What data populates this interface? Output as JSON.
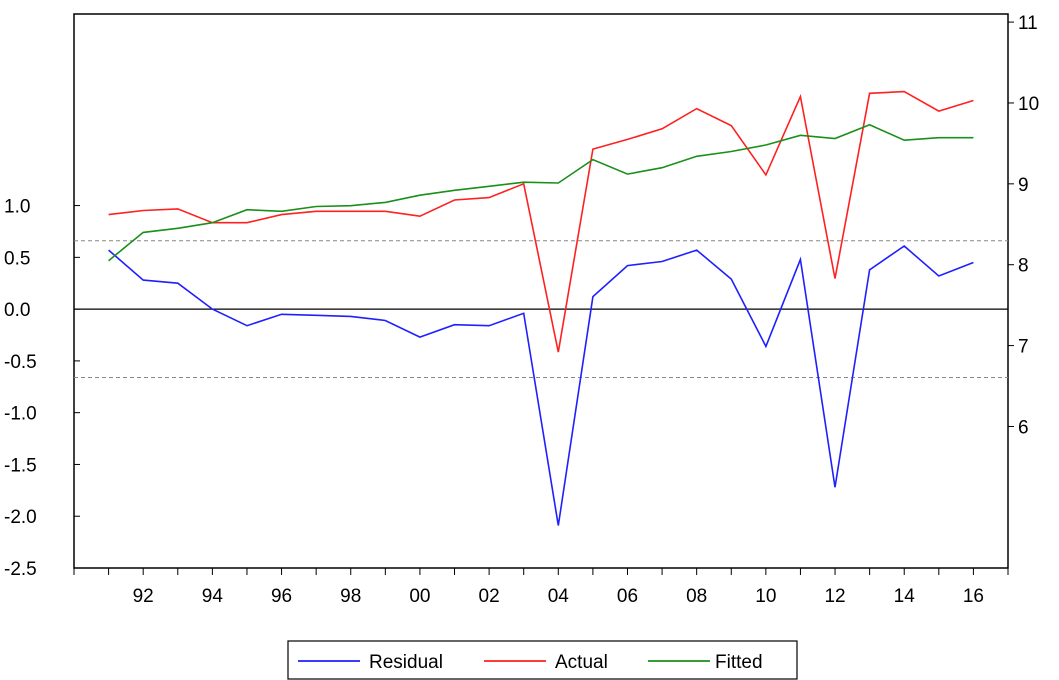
{
  "chart_data": {
    "type": "line",
    "x_tick_labels": [
      "92",
      "94",
      "96",
      "98",
      "00",
      "02",
      "04",
      "06",
      "08",
      "10",
      "12",
      "14",
      "16"
    ],
    "x_tick_years": [
      1992,
      1994,
      1996,
      1998,
      2000,
      2002,
      2004,
      2006,
      2008,
      2010,
      2012,
      2014,
      2016
    ],
    "xlim": [
      1990,
      2017
    ],
    "left_axis": {
      "ylim": [
        -2.5,
        2.85
      ],
      "ticks": [
        1.0,
        0.5,
        0.0,
        -0.5,
        -1.0,
        -1.5,
        -2.0,
        -2.5
      ],
      "tick_labels": [
        "1.0",
        "0.5",
        "0.0",
        "-0.5",
        "-1.0",
        "-1.5",
        "-2.0",
        "-2.5"
      ],
      "reference_line": 0.0,
      "dashed_lines": [
        0.66,
        -0.66
      ]
    },
    "right_axis": {
      "ylim": [
        4.25,
        11.1
      ],
      "ticks": [
        11,
        10,
        9,
        8,
        7,
        6
      ],
      "tick_labels": [
        "11",
        "10",
        "9",
        "8",
        "7",
        "6"
      ]
    },
    "x": [
      1991,
      1992,
      1993,
      1994,
      1995,
      1996,
      1997,
      1998,
      1999,
      2000,
      2001,
      2002,
      2003,
      2004,
      2005,
      2006,
      2007,
      2008,
      2009,
      2010,
      2011,
      2012,
      2013,
      2014,
      2015,
      2016
    ],
    "series": [
      {
        "name": "Residual",
        "axis": "left",
        "color": "#1f1fff",
        "values": [
          0.57,
          0.28,
          0.25,
          0.0,
          -0.16,
          -0.05,
          -0.06,
          -0.07,
          -0.11,
          -0.27,
          -0.15,
          -0.16,
          -0.04,
          -2.09,
          0.12,
          0.42,
          0.46,
          0.57,
          0.29,
          -0.36,
          0.48,
          -1.72,
          0.38,
          0.61,
          0.32,
          0.45
        ]
      },
      {
        "name": "Actual",
        "axis": "right",
        "color": "#ff2020",
        "values": [
          8.62,
          8.67,
          8.69,
          8.52,
          8.52,
          8.62,
          8.66,
          8.66,
          8.66,
          8.6,
          8.8,
          8.83,
          9.0,
          6.92,
          9.43,
          9.55,
          9.68,
          9.93,
          9.72,
          9.11,
          10.08,
          7.83,
          10.12,
          10.14,
          9.9,
          10.03
        ]
      },
      {
        "name": "Fitted",
        "axis": "right",
        "color": "#1a8f1a",
        "values": [
          8.05,
          8.4,
          8.45,
          8.52,
          8.68,
          8.66,
          8.72,
          8.73,
          8.77,
          8.86,
          8.92,
          8.97,
          9.02,
          9.01,
          9.3,
          9.12,
          9.2,
          9.34,
          9.4,
          9.48,
          9.6,
          9.56,
          9.73,
          9.54,
          9.57,
          9.57
        ]
      }
    ],
    "legend": {
      "placement": "bottom-center",
      "entries": [
        "Residual",
        "Actual",
        "Fitted"
      ]
    }
  }
}
